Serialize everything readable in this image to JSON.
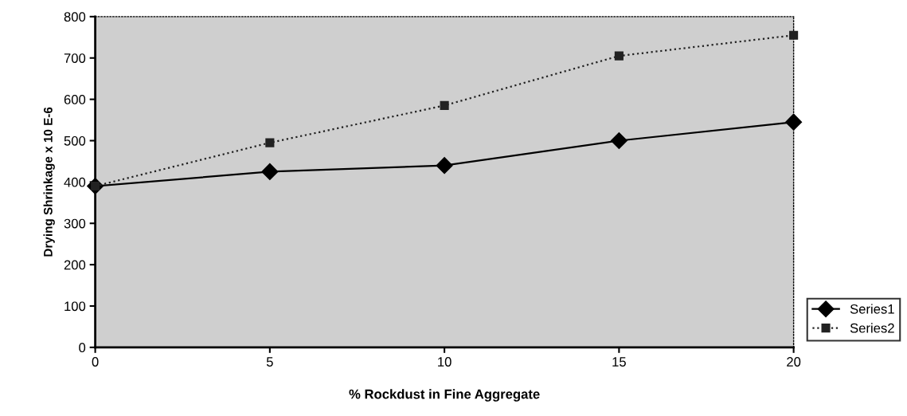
{
  "chart_data": {
    "type": "line",
    "xlabel": "% Rockdust in Fine Aggregate",
    "ylabel": "Drying Shrinkage x 10 E-6",
    "x": [
      0,
      5,
      10,
      15,
      20
    ],
    "xlim": [
      0,
      20
    ],
    "xticks": [
      0,
      5,
      10,
      15,
      20
    ],
    "ylim": [
      0,
      800
    ],
    "yticks": [
      0,
      100,
      200,
      300,
      400,
      500,
      600,
      700,
      800
    ],
    "series": [
      {
        "name": "Series1",
        "color": "#000000",
        "values": [
          390,
          425,
          440,
          500,
          545
        ],
        "marker": "diamond",
        "line_style": "solid"
      },
      {
        "name": "Series2",
        "color": "#222222",
        "values": [
          390,
          495,
          585,
          705,
          755
        ],
        "marker": "square",
        "line_style": "dotted"
      }
    ],
    "grid": false,
    "legend": "bottom right"
  }
}
